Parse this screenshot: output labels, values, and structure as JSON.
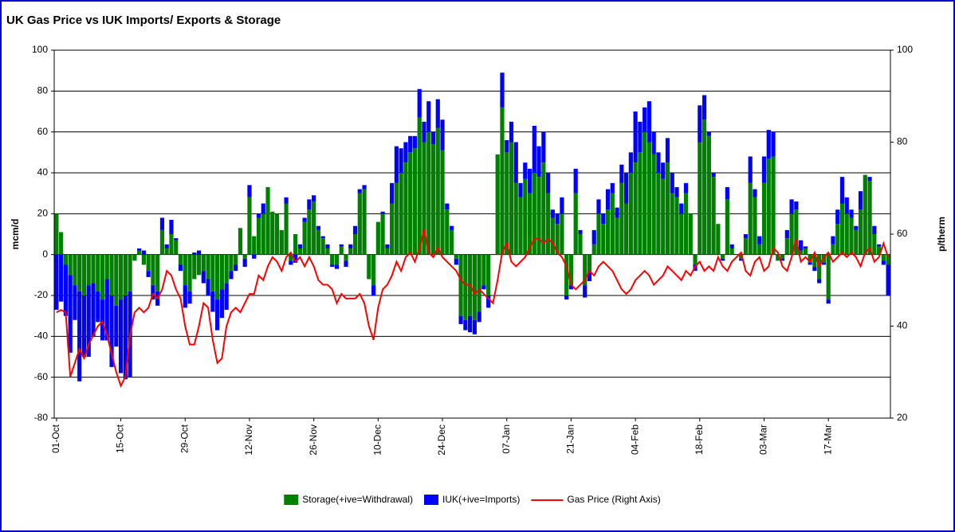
{
  "chart_data": {
    "type": "bar",
    "stacked": true,
    "title": "UK Gas Price vs IUK Imports/ Exports & Storage",
    "y_label": "mcm/d",
    "y2_label": "p/therm",
    "ylim": [
      -80,
      100
    ],
    "yticks": [
      -80,
      -60,
      -40,
      -20,
      0,
      20,
      40,
      60,
      80,
      100
    ],
    "y2lim": [
      20,
      100
    ],
    "y2ticks": [
      20,
      40,
      60,
      80,
      100
    ],
    "grid": true,
    "legend": "bottom",
    "categories": [
      "01-Oct",
      null,
      null,
      null,
      null,
      null,
      null,
      null,
      null,
      null,
      null,
      null,
      null,
      null,
      "15-Oct",
      null,
      null,
      null,
      null,
      null,
      null,
      null,
      null,
      null,
      null,
      null,
      null,
      null,
      "29-Oct",
      null,
      null,
      null,
      null,
      null,
      null,
      null,
      null,
      null,
      null,
      null,
      null,
      null,
      "12-Nov",
      null,
      null,
      null,
      null,
      null,
      null,
      null,
      null,
      null,
      null,
      null,
      null,
      null,
      "26-Nov",
      null,
      null,
      null,
      null,
      null,
      null,
      null,
      null,
      null,
      null,
      null,
      null,
      null,
      "10-Dec",
      null,
      null,
      null,
      null,
      null,
      null,
      null,
      null,
      null,
      null,
      null,
      null,
      null,
      "24-Dec",
      null,
      null,
      null,
      null,
      null,
      null,
      null,
      null,
      null,
      null,
      null,
      null,
      null,
      "07-Jan",
      null,
      null,
      null,
      null,
      null,
      null,
      null,
      null,
      null,
      null,
      null,
      null,
      null,
      "21-Jan",
      null,
      null,
      null,
      null,
      null,
      null,
      null,
      null,
      null,
      null,
      null,
      null,
      null,
      "04-Feb",
      null,
      null,
      null,
      null,
      null,
      null,
      null,
      null,
      null,
      null,
      null,
      null,
      null,
      "18-Feb",
      null,
      null,
      null,
      null,
      null,
      null,
      null,
      null,
      null,
      null,
      null,
      null,
      null,
      "03-Mar",
      null,
      null,
      null,
      null,
      null,
      null,
      null,
      null,
      null,
      null,
      null,
      null,
      null,
      "17-Mar",
      null,
      null,
      null,
      null,
      null,
      null,
      null,
      null,
      null,
      null,
      null,
      null,
      null
    ],
    "series": [
      {
        "name": "Storage(+ive=Withdrawal)",
        "color": "#008000",
        "values": [
          20,
          11,
          -5,
          -10,
          -15,
          -18,
          -20,
          -15,
          -14,
          -18,
          -22,
          -12,
          -20,
          -25,
          -22,
          -20,
          -18,
          -3,
          2,
          -5,
          -8,
          -15,
          -18,
          12,
          3,
          10,
          7,
          -5,
          -15,
          -18,
          -12,
          -10,
          -8,
          -12,
          -18,
          -22,
          -17,
          -14,
          -8,
          -5,
          13,
          -2,
          28,
          9,
          18,
          20,
          33,
          21,
          20,
          12,
          25,
          -3,
          10,
          3,
          16,
          22,
          26,
          12,
          8,
          3,
          -5,
          -5,
          4,
          -3,
          3,
          10,
          30,
          32,
          -12,
          -15,
          16,
          20,
          3,
          25,
          35,
          40,
          45,
          50,
          52,
          67,
          55,
          60,
          54,
          62,
          51,
          22,
          12,
          -2,
          -30,
          -32,
          -30,
          -32,
          -28,
          -15,
          -20,
          0,
          49,
          72,
          50,
          55,
          35,
          28,
          37,
          30,
          40,
          38,
          45,
          30,
          18,
          15,
          20,
          -20,
          -15,
          30,
          10,
          -15,
          -8,
          5,
          20,
          15,
          22,
          30,
          18,
          35,
          25,
          40,
          45,
          50,
          60,
          55,
          49,
          40,
          37,
          45,
          30,
          28,
          20,
          30,
          20,
          -5,
          55,
          66,
          58,
          38,
          15,
          -2,
          27,
          3,
          0,
          -2,
          8,
          35,
          28,
          5,
          35,
          47,
          48,
          -3,
          -2,
          8,
          20,
          22,
          2,
          3,
          -4,
          -6,
          -12,
          -4,
          -22,
          5,
          15,
          25,
          20,
          18,
          12,
          22,
          39,
          36,
          10,
          4,
          -3,
          -5
        ]
      },
      {
        "name": "IUK(+ive=Imports)",
        "color": "#0000ff",
        "values": [
          -27,
          -23,
          -25,
          -38,
          -17,
          -44,
          -30,
          -35,
          -26,
          -15,
          -20,
          -30,
          -35,
          -20,
          -36,
          -41,
          -42,
          0,
          1,
          2,
          -3,
          -7,
          -7,
          6,
          2,
          7,
          1,
          -3,
          -11,
          -6,
          1,
          2,
          -6,
          -8,
          -10,
          -15,
          -14,
          -13,
          -4,
          -3,
          0,
          -4,
          6,
          -2,
          2,
          5,
          0,
          0,
          0,
          0,
          3,
          -2,
          -4,
          2,
          2,
          5,
          3,
          2,
          1,
          2,
          -1,
          -2,
          1,
          -3,
          2,
          4,
          2,
          2,
          0,
          -5,
          0,
          1,
          2,
          10,
          18,
          12,
          10,
          8,
          6,
          14,
          10,
          15,
          6,
          14,
          15,
          3,
          2,
          -3,
          -4,
          -5,
          -8,
          -7,
          -5,
          -2,
          -6,
          0,
          0,
          17,
          6,
          10,
          20,
          7,
          8,
          12,
          23,
          15,
          15,
          10,
          4,
          5,
          8,
          -2,
          -2,
          12,
          2,
          -6,
          -5,
          7,
          7,
          5,
          10,
          5,
          5,
          9,
          15,
          10,
          25,
          15,
          12,
          20,
          11,
          10,
          8,
          12,
          10,
          5,
          5,
          5,
          0,
          -3,
          18,
          12,
          2,
          2,
          0,
          -1,
          6,
          2,
          0,
          -1,
          2,
          13,
          4,
          4,
          13,
          14,
          12,
          0,
          -1,
          4,
          7,
          4,
          5,
          1,
          -1,
          -2,
          -2,
          -1,
          -2,
          4,
          7,
          13,
          8,
          4,
          2,
          9,
          0,
          2,
          4,
          1,
          -2,
          -15
        ]
      },
      {
        "name": "Gas Price (Right Axis)",
        "color": "#ff0000",
        "type": "line",
        "axis": "y2",
        "values": [
          43,
          43.5,
          43,
          29,
          32,
          35,
          33,
          36,
          38,
          40,
          41,
          38,
          34,
          30,
          27,
          29,
          38,
          43,
          44,
          43,
          44,
          47,
          46,
          48,
          52,
          51,
          48,
          46,
          40,
          36,
          36,
          40,
          45,
          44,
          37,
          32,
          33,
          40,
          43,
          44,
          43,
          45,
          47,
          47,
          51,
          50,
          53,
          55,
          54,
          52,
          55,
          56,
          54,
          55,
          53,
          55,
          53,
          50,
          49,
          49,
          48,
          45,
          47,
          46,
          46,
          46,
          47,
          45,
          40,
          37,
          44,
          48,
          49,
          51,
          54,
          52,
          55,
          56,
          54,
          57,
          61,
          56,
          55,
          57,
          55,
          54,
          53,
          52,
          50,
          49,
          49,
          47,
          48,
          47,
          46,
          45,
          50,
          56,
          58,
          54,
          53,
          54,
          55,
          57,
          59,
          59,
          58,
          59,
          58,
          56,
          55,
          53,
          49,
          48,
          49,
          50,
          52,
          51,
          53,
          54,
          53,
          52,
          50,
          48,
          47,
          48,
          50,
          51,
          52,
          51,
          49,
          50,
          51,
          53,
          52,
          51,
          50,
          52,
          51,
          53,
          54,
          52,
          53,
          52,
          55,
          53,
          52,
          54,
          55,
          56,
          52,
          51,
          54,
          55,
          52,
          53,
          57,
          56,
          53,
          52,
          55,
          59,
          54,
          55,
          54,
          56,
          53,
          55,
          56,
          54,
          55,
          56,
          55,
          56,
          55,
          53,
          56,
          57,
          54,
          55,
          58,
          55
        ]
      }
    ]
  }
}
